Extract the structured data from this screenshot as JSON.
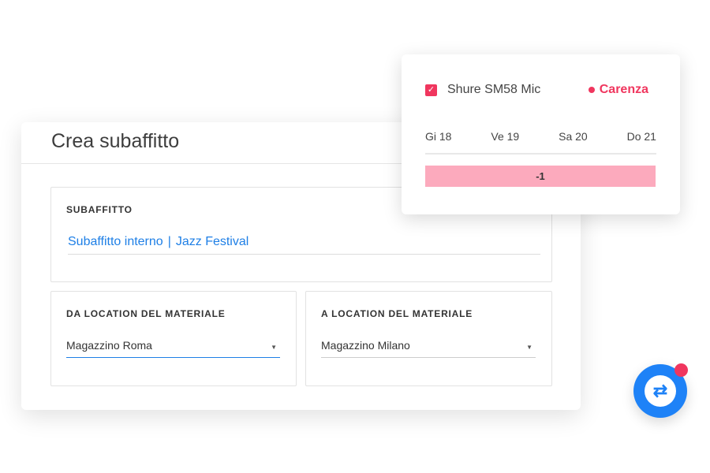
{
  "form": {
    "title": "Crea subaffitto",
    "subaffitto": {
      "label": "SUBAFFITTO",
      "type": "Subaffitto interno",
      "separator": "|",
      "event": "Jazz Festival"
    },
    "from": {
      "label": "DA LOCATION DEL MATERIALE",
      "value": "Magazzino Roma"
    },
    "to": {
      "label": "A LOCATION DEL MATERIALE",
      "value": "Magazzino Milano"
    }
  },
  "popup": {
    "item": "Shure SM58 Mic",
    "checked": true,
    "status": "Carenza",
    "days": [
      "Gi 18",
      "Ve 19",
      "Sa 20",
      "Do 21"
    ],
    "shortage": "-1"
  },
  "fab": {
    "icon": "swap-arrows-icon",
    "notification": true
  },
  "colors": {
    "accent": "#1e82f7",
    "danger": "#f0365e",
    "shortage_bar": "#fcaabd"
  }
}
